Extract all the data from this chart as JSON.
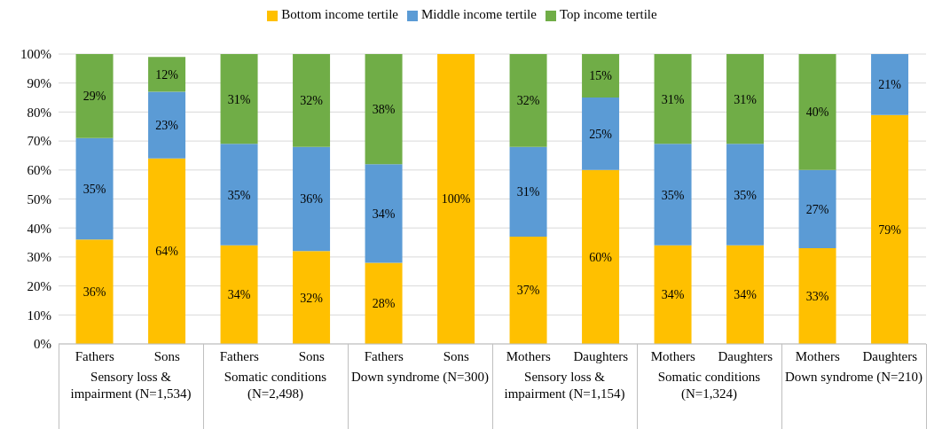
{
  "chart_data": {
    "type": "bar",
    "stacked": true,
    "legend": "top",
    "grid": "y",
    "categories": [
      "Fathers",
      "Sons",
      "Fathers",
      "Sons",
      "Fathers",
      "Sons",
      "Mothers",
      "Daughters",
      "Mothers",
      "Daughters",
      "Mothers",
      "Daughters"
    ],
    "annotations": [
      "Sensory loss & impairment (N=1,534)",
      "Somatic conditions (N=2,498)",
      "Down syndrome (N=300)",
      "Sensory loss & impairment (N=1,154)",
      "Somatic conditions (N=1,324)",
      "Down syndrome (N=210)"
    ],
    "ylim": [
      0,
      100
    ],
    "yticks": [
      {
        "value": 0,
        "label": "0%"
      },
      {
        "value": 10,
        "label": "10%"
      },
      {
        "value": 20,
        "label": "20%"
      },
      {
        "value": 30,
        "label": "30%"
      },
      {
        "value": 40,
        "label": "40%"
      },
      {
        "value": 50,
        "label": "50%"
      },
      {
        "value": 60,
        "label": "60%"
      },
      {
        "value": 70,
        "label": "70%"
      },
      {
        "value": 80,
        "label": "80%"
      },
      {
        "value": 90,
        "label": "90%"
      },
      {
        "value": 100,
        "label": "100%"
      }
    ],
    "series": [
      {
        "name": "Bottom income tertile",
        "color": "#ffc000",
        "values": [
          36,
          64,
          34,
          32,
          28,
          100,
          37,
          60,
          34,
          34,
          33,
          79
        ],
        "value_labels": [
          "36%",
          "64%",
          "34%",
          "32%",
          "28%",
          "100%",
          "37%",
          "60%",
          "34%",
          "34%",
          "33%",
          "79%"
        ]
      },
      {
        "name": "Middle income tertile",
        "color": "#5b9bd5",
        "values": [
          35,
          23,
          35,
          36,
          34,
          null,
          31,
          25,
          35,
          35,
          27,
          21
        ],
        "value_labels": [
          "35%",
          "23%",
          "35%",
          "36%",
          "34%",
          null,
          "31%",
          "25%",
          "35%",
          "35%",
          "27%",
          "21%"
        ]
      },
      {
        "name": "Top income tertile",
        "color": "#70ad47",
        "values": [
          29,
          12,
          31,
          32,
          38,
          null,
          32,
          15,
          31,
          31,
          40,
          null
        ],
        "value_labels": [
          "29%",
          "12%",
          "31%",
          "32%",
          "38%",
          null,
          "32%",
          "15%",
          "31%",
          "31%",
          "40%",
          null
        ]
      }
    ]
  }
}
